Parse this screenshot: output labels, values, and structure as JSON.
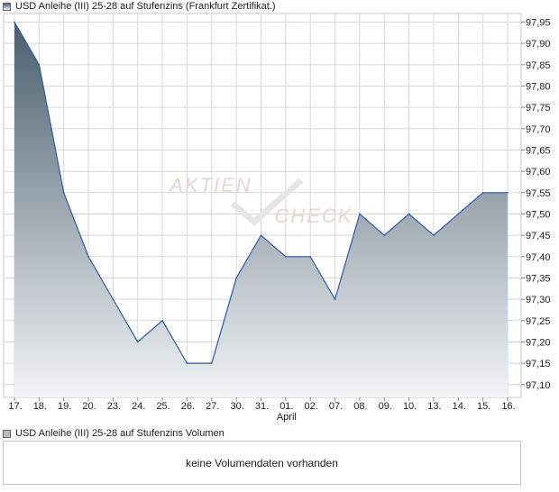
{
  "chart_data": {
    "type": "area",
    "title": "USD Anleihe (III) 25-28 auf Stufenzins (Frankfurt Zertifikat.)",
    "x": [
      "17.",
      "18.",
      "19.",
      "20.",
      "23.",
      "24.",
      "25.",
      "26.",
      "27.",
      "30.",
      "31.",
      "01.",
      "02.",
      "07.",
      "08.",
      "09.",
      "10.",
      "13.",
      "14.",
      "15.",
      "16."
    ],
    "x_group_labels": [
      {
        "label": "April",
        "at": "01."
      }
    ],
    "series": [
      {
        "values": [
          97.95,
          97.85,
          97.55,
          97.4,
          97.3,
          97.2,
          97.25,
          97.15,
          97.15,
          97.35,
          97.45,
          97.4,
          97.4,
          97.3,
          97.5,
          97.45,
          97.5,
          97.45,
          97.5,
          97.55,
          97.55
        ]
      }
    ],
    "y_ticks": [
      "97,95",
      "97,90",
      "97,85",
      "97,80",
      "97,75",
      "97,70",
      "97,65",
      "97,60",
      "97,55",
      "97,50",
      "97,45",
      "97,40",
      "97,35",
      "97,30",
      "97,25",
      "97,20",
      "97,15",
      "97,10"
    ],
    "ylim": [
      97.07,
      97.97
    ],
    "grid": true,
    "watermark": [
      "AKTIEN",
      "CHECK"
    ],
    "colors": {
      "line": "#2a5aa8",
      "fill_top": "#4a5e6e",
      "fill_bottom": "#f2f4f6",
      "grid": "#d8d8d8"
    }
  },
  "legend": {
    "price": "USD Anleihe (III) 25-28 auf Stufenzins (Frankfurt Zertifikat.)",
    "volume": "USD Anleihe (III) 25-28 auf Stufenzins Volumen"
  },
  "volume_panel": {
    "message": "keine Volumendaten vorhanden"
  }
}
